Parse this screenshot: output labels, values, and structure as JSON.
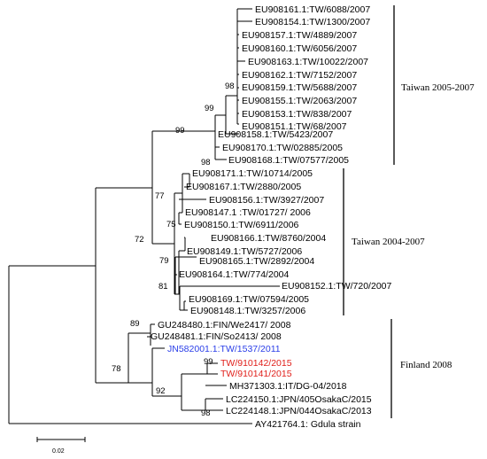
{
  "colors": {
    "default": "#000000",
    "blue": "#2a3ee8",
    "red": "#e0201b"
  },
  "leaves": [
    {
      "label": "EU908161.1:TW/6088/2007",
      "color": "default"
    },
    {
      "label": "EU908154.1:TW/1300/2007",
      "color": "default"
    },
    {
      "label": "EU908157.1:TW/4889/2007",
      "color": "default"
    },
    {
      "label": "EU908160.1:TW/6056/2007",
      "color": "default"
    },
    {
      "label": "EU908163.1:TW/10022/2007",
      "color": "default"
    },
    {
      "label": "EU908162.1:TW/7152/2007",
      "color": "default"
    },
    {
      "label": "EU908159.1:TW/5688/2007",
      "color": "default"
    },
    {
      "label": "EU908155.1:TW/2063/2007",
      "color": "default"
    },
    {
      "label": "EU908153.1:TW/838/2007",
      "color": "default"
    },
    {
      "label": "EU908151.1:TW/68/2007",
      "color": "default"
    },
    {
      "label": "EU908158.1:TW/5423/2007",
      "color": "default"
    },
    {
      "label": "EU908170.1:TW/02885/2005",
      "color": "default"
    },
    {
      "label": "EU908168.1:TW/07577/2005",
      "color": "default"
    },
    {
      "label": "EU908171.1:TW/10714/2005",
      "color": "default"
    },
    {
      "label": "EU908167.1:TW/2880/2005",
      "color": "default"
    },
    {
      "label": "EU908156.1:TW/3927/2007",
      "color": "default"
    },
    {
      "label": "EU908147.1 :TW/01727/ 2006",
      "color": "default"
    },
    {
      "label": "EU908150.1:TW/6911/2006",
      "color": "default"
    },
    {
      "label": "EU908166.1:TW/8760/2004",
      "color": "default"
    },
    {
      "label": "EU908149.1:TW/5727/2006",
      "color": "default"
    },
    {
      "label": "EU908165.1:TW/2892/2004",
      "color": "default"
    },
    {
      "label": "EU908164.1:TW/774/2004",
      "color": "default"
    },
    {
      "label": "EU908152.1:TW/720/2007",
      "color": "default"
    },
    {
      "label": "EU908169.1:TW/07594/2005",
      "color": "default"
    },
    {
      "label": "EU908148.1:TW/3257/2006",
      "color": "default"
    },
    {
      "label": "GU248480.1:FIN/We2417/ 2008",
      "color": "default"
    },
    {
      "label": "GU248481.1:FIN/So2413/ 2008",
      "color": "default"
    },
    {
      "label": "JN582001.1:TW/1537/2011",
      "color": "blue"
    },
    {
      "label": "TW/910142/2015",
      "color": "red"
    },
    {
      "label": "TW/910141/2015",
      "color": "red"
    },
    {
      "label": "MH371303.1:IT/DG-04/2018",
      "color": "default"
    },
    {
      "label": "LC224150.1:JPN/405OsakaC/2015",
      "color": "default"
    },
    {
      "label": "LC224148.1:JPN/044OsakaC/2013",
      "color": "default"
    },
    {
      "label": "AY421764.1: Gdula strain",
      "color": "default"
    }
  ],
  "bootstrap": [
    "98",
    "99",
    "99",
    "98",
    "77",
    "75",
    "72",
    "79",
    "81",
    "89",
    "78",
    "99",
    "92",
    "98"
  ],
  "clades": [
    "Taiwan 2005-2007",
    "Taiwan 2004-2007",
    "Finland 2008"
  ],
  "scale_label": "0.02"
}
